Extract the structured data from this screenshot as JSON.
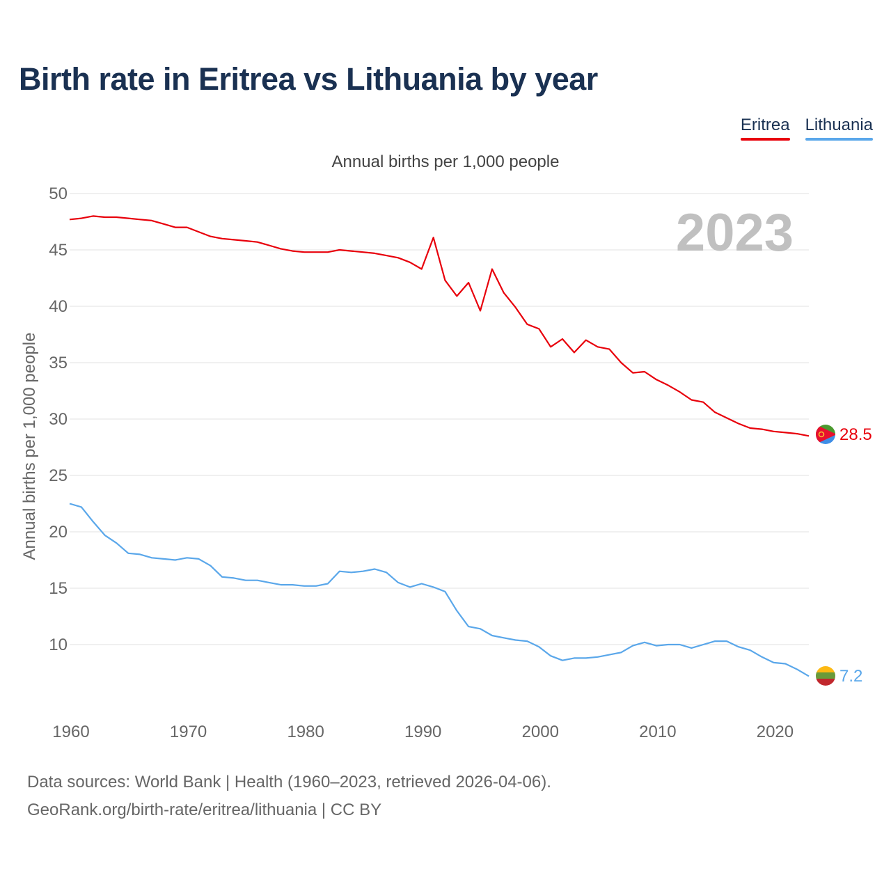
{
  "title": "Birth rate in Eritrea vs Lithuania by year",
  "legend": [
    {
      "label": "Eritrea",
      "color": "#e8000b"
    },
    {
      "label": "Lithuania",
      "color": "#5aa7ea"
    }
  ],
  "footer": {
    "line1": "Data sources: World Bank | Health (1960–2023, retrieved 2026-04-06).",
    "line2": "GeoRank.org/birth-rate/eritrea/lithuania | CC BY"
  },
  "chart_data": {
    "type": "line",
    "title": "Annual births per 1,000 people",
    "ylabel": "Annual births per 1,000 people",
    "xlabel": "",
    "year_label": "2023",
    "xlim": [
      1960,
      2023
    ],
    "ylim": [
      5,
      50
    ],
    "y_ticks": [
      10,
      15,
      20,
      25,
      30,
      35,
      40,
      45,
      50
    ],
    "x_ticks": [
      1960,
      1970,
      1980,
      1990,
      2000,
      2010,
      2020
    ],
    "grid": true,
    "x": [
      1960,
      1961,
      1962,
      1963,
      1964,
      1965,
      1966,
      1967,
      1968,
      1969,
      1970,
      1971,
      1972,
      1973,
      1974,
      1975,
      1976,
      1977,
      1978,
      1979,
      1980,
      1981,
      1982,
      1983,
      1984,
      1985,
      1986,
      1987,
      1988,
      1989,
      1990,
      1991,
      1992,
      1993,
      1994,
      1995,
      1996,
      1997,
      1998,
      1999,
      2000,
      2001,
      2002,
      2003,
      2004,
      2005,
      2006,
      2007,
      2008,
      2009,
      2010,
      2011,
      2012,
      2013,
      2014,
      2015,
      2016,
      2017,
      2018,
      2019,
      2020,
      2021,
      2022,
      2023
    ],
    "series": [
      {
        "name": "Eritrea",
        "color": "#e8000b",
        "end_label": "28.5",
        "values": [
          47.7,
          47.8,
          48.0,
          47.9,
          47.9,
          47.8,
          47.7,
          47.6,
          47.3,
          47.0,
          47.0,
          46.6,
          46.2,
          46.0,
          45.9,
          45.8,
          45.7,
          45.4,
          45.1,
          44.9,
          44.8,
          44.8,
          44.8,
          45.0,
          44.9,
          44.8,
          44.7,
          44.5,
          44.3,
          43.9,
          43.3,
          46.1,
          42.3,
          40.9,
          42.1,
          39.6,
          43.3,
          41.2,
          39.9,
          38.4,
          38.0,
          36.4,
          37.1,
          35.9,
          37.0,
          36.4,
          36.2,
          35.0,
          34.1,
          34.2,
          33.5,
          33.0,
          32.4,
          31.7,
          31.5,
          30.6,
          30.1,
          29.6,
          29.2,
          29.1,
          28.9,
          28.8,
          28.7,
          28.5
        ]
      },
      {
        "name": "Lithuania",
        "color": "#5aa7ea",
        "end_label": "7.2",
        "values": [
          22.5,
          22.2,
          20.9,
          19.7,
          19.0,
          18.1,
          18.0,
          17.7,
          17.6,
          17.5,
          17.7,
          17.6,
          17.0,
          16.0,
          15.9,
          15.7,
          15.7,
          15.5,
          15.3,
          15.3,
          15.2,
          15.2,
          15.4,
          16.5,
          16.4,
          16.5,
          16.7,
          16.4,
          15.5,
          15.1,
          15.4,
          15.1,
          14.7,
          13.0,
          11.6,
          11.4,
          10.8,
          10.6,
          10.4,
          10.3,
          9.8,
          9.0,
          8.6,
          8.8,
          8.8,
          8.9,
          9.1,
          9.3,
          9.9,
          10.2,
          9.9,
          10.0,
          10.0,
          9.7,
          10.0,
          10.3,
          10.3,
          9.8,
          9.5,
          8.9,
          8.4,
          8.3,
          7.8,
          7.2
        ]
      }
    ]
  }
}
